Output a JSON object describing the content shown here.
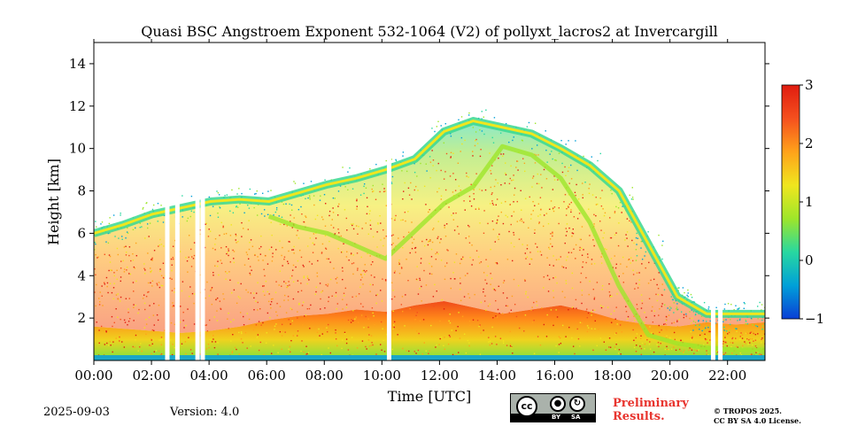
{
  "chart_data": {
    "type": "heatmap",
    "title": "Quasi BSC Angstroem Exponent 532-1064 (V2) of pollyxt_lacros2 at Invercargill",
    "xlabel": "Time [UTC]",
    "ylabel": "Height [km]",
    "x_range_hours": [
      0,
      23.3
    ],
    "ylim": [
      0,
      15
    ],
    "x_ticks": [
      {
        "value": 0,
        "label": "00:00"
      },
      {
        "value": 2,
        "label": "02:00"
      },
      {
        "value": 4,
        "label": "04:00"
      },
      {
        "value": 6,
        "label": "06:00"
      },
      {
        "value": 8,
        "label": "08:00"
      },
      {
        "value": 10,
        "label": "10:00"
      },
      {
        "value": 12,
        "label": "12:00"
      },
      {
        "value": 14,
        "label": "14:00"
      },
      {
        "value": 16,
        "label": "16:00"
      },
      {
        "value": 18,
        "label": "18:00"
      },
      {
        "value": 20,
        "label": "20:00"
      },
      {
        "value": 22,
        "label": "22:00"
      }
    ],
    "y_ticks": [
      {
        "value": 2,
        "label": "2"
      },
      {
        "value": 4,
        "label": "4"
      },
      {
        "value": 6,
        "label": "6"
      },
      {
        "value": 8,
        "label": "8"
      },
      {
        "value": 10,
        "label": "10"
      },
      {
        "value": 12,
        "label": "12"
      },
      {
        "value": 14,
        "label": "14"
      }
    ],
    "colorbar": {
      "range": [
        -1,
        3
      ],
      "ticks": [
        {
          "value": -1,
          "label": "−1"
        },
        {
          "value": 0,
          "label": "0"
        },
        {
          "value": 1,
          "label": "1"
        },
        {
          "value": 2,
          "label": "2"
        },
        {
          "value": 3,
          "label": "3"
        }
      ],
      "colors": [
        "#0a3fd6",
        "#00a0d8",
        "#28d8a0",
        "#9ee62a",
        "#f0e61e",
        "#ffa21a",
        "#f5501e",
        "#e01c10"
      ]
    },
    "features": {
      "boundary_layer": {
        "top_km": [
          1.6,
          1.5,
          1.4,
          1.3,
          1.4,
          1.6,
          1.9,
          2.1,
          2.2,
          2.4,
          2.3,
          2.6,
          2.8,
          2.5,
          2.2,
          2.4,
          2.6,
          2.3,
          1.9,
          1.7,
          1.6,
          1.8,
          1.7,
          1.8
        ],
        "value": 2.2
      },
      "aerosol_layer_top_km": [
        6.0,
        6.4,
        6.9,
        7.2,
        7.5,
        7.6,
        7.5,
        7.9,
        8.3,
        8.6,
        9.0,
        9.5,
        10.8,
        11.3,
        11.0,
        10.7,
        10.0,
        9.2,
        8.0,
        5.5,
        3.0,
        2.2,
        2.2,
        2.2
      ],
      "lower_edge_km": [
        null,
        null,
        null,
        null,
        null,
        null,
        6.8,
        6.3,
        6.0,
        5.4,
        4.8,
        6.1,
        7.4,
        8.2,
        10.1,
        9.7,
        8.6,
        6.5,
        3.5,
        1.2,
        0.8,
        0.6,
        0.5,
        0.5
      ],
      "data_gaps_hours": [
        2.55,
        2.9,
        3.6,
        3.78,
        10.25,
        21.5,
        21.75
      ]
    }
  },
  "footer": {
    "date": "2025-09-03",
    "version": "Version: 4.0",
    "license_badge": {
      "cc": "cc",
      "by": "BY",
      "sa": "SA"
    },
    "preliminary_line1": "Preliminary",
    "preliminary_line2": "Results.",
    "copyright_line1": "© TROPOS 2025.",
    "copyright_line2": "CC BY SA 4.0 License."
  }
}
